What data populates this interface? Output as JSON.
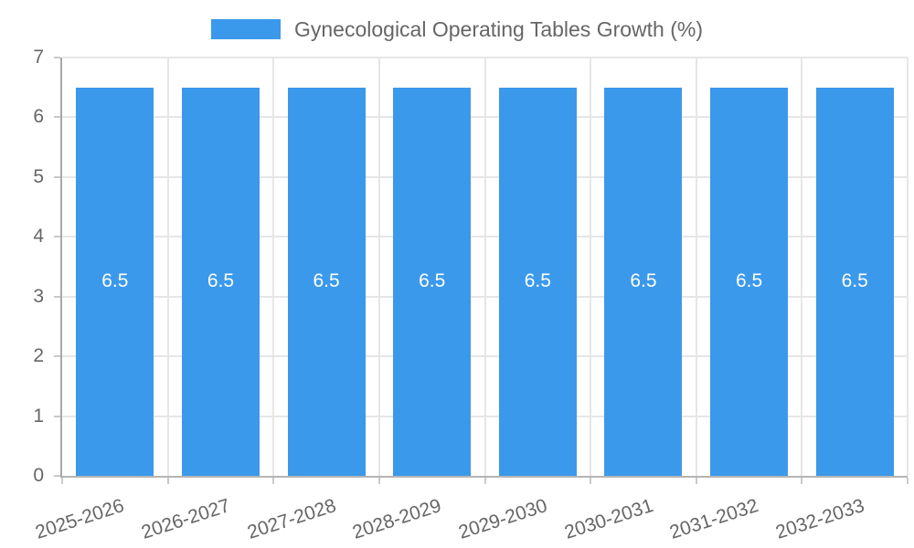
{
  "chart_data": {
    "type": "bar",
    "title": "Gynecological Operating Tables Growth (%)",
    "legend": {
      "position": "top"
    },
    "categories": [
      "2025-2026",
      "2026-2027",
      "2027-2028",
      "2028-2029",
      "2029-2030",
      "2030-2031",
      "2031-2032",
      "2032-2033"
    ],
    "series": [
      {
        "name": "Gynecological Operating Tables Growth (%)",
        "values": [
          6.5,
          6.5,
          6.5,
          6.5,
          6.5,
          6.5,
          6.5,
          6.5
        ]
      }
    ],
    "bar_labels": [
      "6.5",
      "6.5",
      "6.5",
      "6.5",
      "6.5",
      "6.5",
      "6.5",
      "6.5"
    ],
    "xlabel": "",
    "ylabel": "",
    "ylim": [
      0,
      7
    ],
    "yticks": [
      0,
      1,
      2,
      3,
      4,
      5,
      6,
      7
    ],
    "grid": true,
    "x_label_rotation_deg": -18,
    "colors": {
      "bar": "#3b99eb",
      "bar_label": "#ffffff",
      "grid_line": "#e6e6e6",
      "tick_mark": "#c9c9c9",
      "y_axis_line": "#a8a8a8",
      "x_axis_line": "#b5b5b5",
      "tick_label": "#666666",
      "legend_text": "#666666",
      "background": "#ffffff"
    }
  }
}
